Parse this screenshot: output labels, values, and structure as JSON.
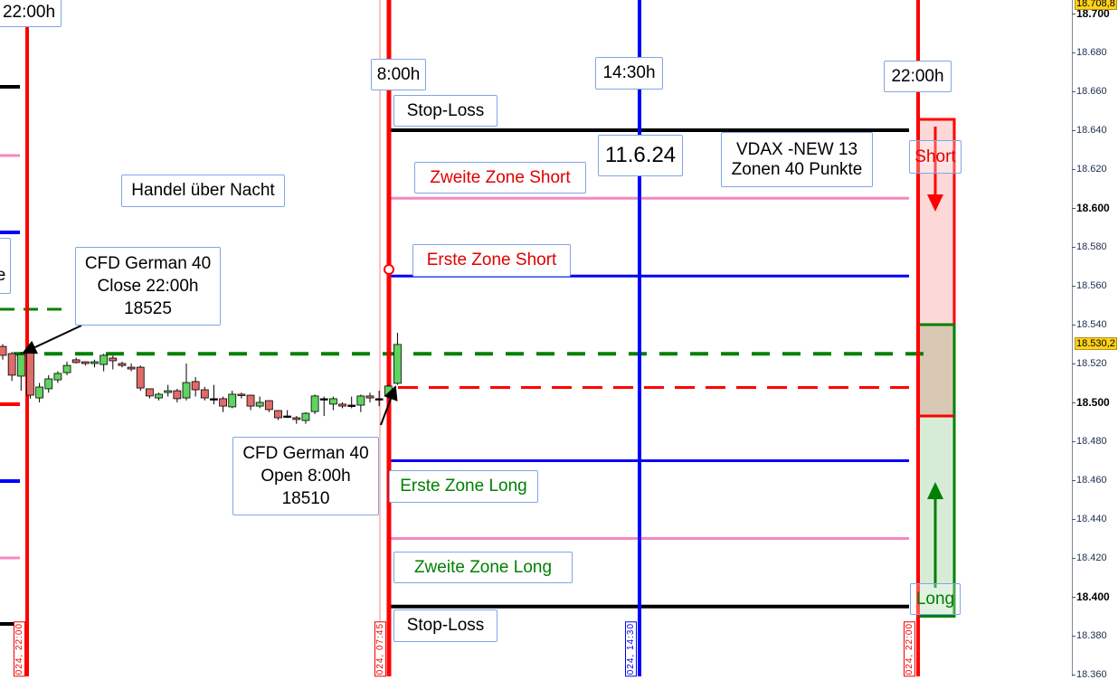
{
  "axis": {
    "ticks": [
      18700,
      18680,
      18660,
      18640,
      18620,
      18600,
      18580,
      18560,
      18540,
      18520,
      18500,
      18480,
      18460,
      18440,
      18420,
      18400,
      18380,
      18360
    ],
    "tick_labels": [
      "18.700",
      "18.680",
      "18.660",
      "18.640",
      "18.620",
      "18.600",
      "18.580",
      "18.560",
      "18.540",
      "18.520",
      "18.500",
      "18.480",
      "18.460",
      "18.440",
      "18.420",
      "18.400",
      "18.380",
      "18.360"
    ],
    "bold": [
      "18.700",
      "18.600",
      "18.500",
      "18.400"
    ],
    "high_badge": "18.708,8",
    "last_badge": "18.530,2",
    "last_price": 18530.2,
    "high_price": 18708.8
  },
  "time_labels": {
    "left": "22:00h",
    "open": "8:00h",
    "mid": "14:30h",
    "close": "22:00h"
  },
  "date_labels": {
    "a": "024, 22:00",
    "b": "024, 07:45",
    "c": "024, 14:30",
    "d": "024, 22:00"
  },
  "labels": {
    "stop_loss_top": "Stop-Loss",
    "stop_loss_bottom": "Stop-Loss",
    "date": "11.6.24",
    "vdax_1": "VDAX -NEW 13",
    "vdax_2": "Zonen 40 Punkte",
    "zweite_short": "Zweite Zone Short",
    "erste_short": "Erste Zone Short",
    "erste_long": "Erste Zone Long",
    "zweite_long": "Zweite Zone Long",
    "short": "Short",
    "long": "Long",
    "overnight": "Handel über Nacht",
    "close_1": "CFD German 40",
    "close_2": "Close 22:00h",
    "close_3": "18525",
    "open_1": "CFD German 40",
    "open_2": "Open 8:00h",
    "open_3": "18510",
    "left_cut": "e"
  },
  "levels": {
    "stop_short": 18640,
    "zone2_short": 18605,
    "zone1_short": 18565,
    "close": 18525,
    "open": 18510,
    "zone1_long": 18470,
    "zone2_long": 18430,
    "stop_long": 18395
  },
  "colors": {
    "red": "#ff0000",
    "blue": "#0000ff",
    "pink": "#f488c0",
    "green": "#008000",
    "black": "#000000",
    "candle_up": "#5fd35f",
    "candle_down": "#e06b6b"
  },
  "candles": [
    [
      18528.8,
      18524.2,
      18530,
      18522
    ],
    [
      18525.1,
      18514.0,
      18526,
      18511
    ],
    [
      18513.5,
      18524.6,
      18526,
      18506
    ],
    [
      18527.9,
      18503.7,
      18529,
      18502
    ],
    [
      18502.3,
      18507.9,
      18510,
      18500
    ],
    [
      18507.0,
      18512.1,
      18514,
      18505
    ],
    [
      18511.6,
      18514.9,
      18516,
      18510
    ],
    [
      18515.3,
      18519.0,
      18521,
      18514
    ],
    [
      18521.9,
      18520.5,
      18523,
      18520
    ],
    [
      18520.9,
      18520.0,
      18521,
      18519
    ],
    [
      18520.0,
      18520.9,
      18522,
      18518
    ],
    [
      18519.5,
      18524.2,
      18525,
      18516
    ],
    [
      18522.8,
      18521.4,
      18524,
      18517
    ],
    [
      18520.0,
      18519.0,
      18521,
      18518
    ],
    [
      18518.1,
      18517.2,
      18520,
      18516
    ],
    [
      18518.1,
      18507.4,
      18519,
      18506
    ],
    [
      18507.0,
      18503.3,
      18507,
      18502
    ],
    [
      18502.3,
      18504.2,
      18505,
      18501
    ],
    [
      18505.1,
      18506.0,
      18509,
      18503
    ],
    [
      18506.0,
      18501.9,
      18507,
      18500
    ],
    [
      18502.3,
      18510.2,
      18520,
      18501
    ],
    [
      18510.7,
      18506.5,
      18513,
      18503
    ],
    [
      18506.5,
      18502.3,
      18508,
      18501
    ],
    [
      18501.9,
      18501.9,
      18509,
      18499
    ],
    [
      18501.9,
      18498.1,
      18503,
      18495
    ],
    [
      18497.7,
      18504.2,
      18506,
      18497
    ],
    [
      18504.2,
      18503.7,
      18505,
      18502
    ],
    [
      18503.7,
      18498.1,
      18504,
      18496
    ],
    [
      18498.1,
      18500.0,
      18503,
      18497
    ],
    [
      18500.9,
      18496.3,
      18501,
      18495
    ],
    [
      18495.8,
      18492.1,
      18496,
      18491
    ],
    [
      18493.0,
      18493.0,
      18496,
      18492
    ],
    [
      18492.1,
      18491.2,
      18493,
      18489
    ],
    [
      18490.7,
      18494.4,
      18495,
      18489
    ],
    [
      18495.3,
      18503.3,
      18504,
      18494
    ],
    [
      18501.9,
      18501.9,
      18503,
      18493
    ],
    [
      18499.1,
      18501.9,
      18503,
      18496
    ],
    [
      18499.1,
      18498.1,
      18500,
      18497
    ],
    [
      18498.6,
      18498.6,
      18503,
      18497
    ],
    [
      18498.6,
      18503.3,
      18504,
      18495
    ],
    [
      18503.3,
      18502.3,
      18505,
      18500
    ],
    [
      18501.9,
      18501.9,
      18506,
      18498
    ],
    [
      18503.3,
      18508.4,
      18509,
      18502
    ],
    [
      18509.8,
      18529.8,
      18535.8,
      18509
    ]
  ]
}
